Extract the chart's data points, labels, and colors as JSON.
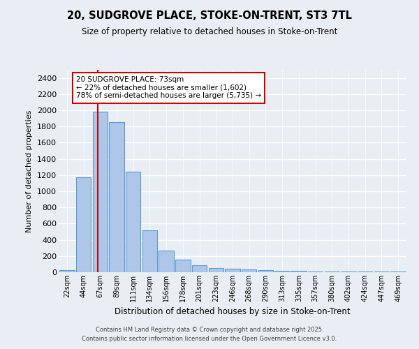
{
  "title1": "20, SUDGROVE PLACE, STOKE-ON-TRENT, ST3 7TL",
  "title2": "Size of property relative to detached houses in Stoke-on-Trent",
  "xlabel": "Distribution of detached houses by size in Stoke-on-Trent",
  "ylabel": "Number of detached properties",
  "categories": [
    "22sqm",
    "44sqm",
    "67sqm",
    "89sqm",
    "111sqm",
    "134sqm",
    "156sqm",
    "178sqm",
    "201sqm",
    "223sqm",
    "246sqm",
    "268sqm",
    "290sqm",
    "313sqm",
    "335sqm",
    "357sqm",
    "380sqm",
    "402sqm",
    "424sqm",
    "447sqm",
    "469sqm"
  ],
  "values": [
    30,
    1170,
    1980,
    1850,
    1240,
    515,
    270,
    155,
    90,
    50,
    40,
    35,
    25,
    20,
    20,
    5,
    5,
    5,
    5,
    5,
    5
  ],
  "bar_color": "#aec6e8",
  "bar_edge_color": "#5b9bd5",
  "background_color": "#e8eef4",
  "grid_color": "#ffffff",
  "annotation_text": "20 SUDGROVE PLACE: 73sqm\n← 22% of detached houses are smaller (1,602)\n78% of semi-detached houses are larger (5,735) →",
  "annotation_box_color": "#ffffff",
  "annotation_border_color": "#cc0000",
  "vline_x": 1.85,
  "ylim": [
    0,
    2500
  ],
  "yticks": [
    0,
    200,
    400,
    600,
    800,
    1000,
    1200,
    1400,
    1600,
    1800,
    2000,
    2200,
    2400
  ],
  "footer1": "Contains HM Land Registry data © Crown copyright and database right 2025.",
  "footer2": "Contains public sector information licensed under the Open Government Licence v3.0."
}
